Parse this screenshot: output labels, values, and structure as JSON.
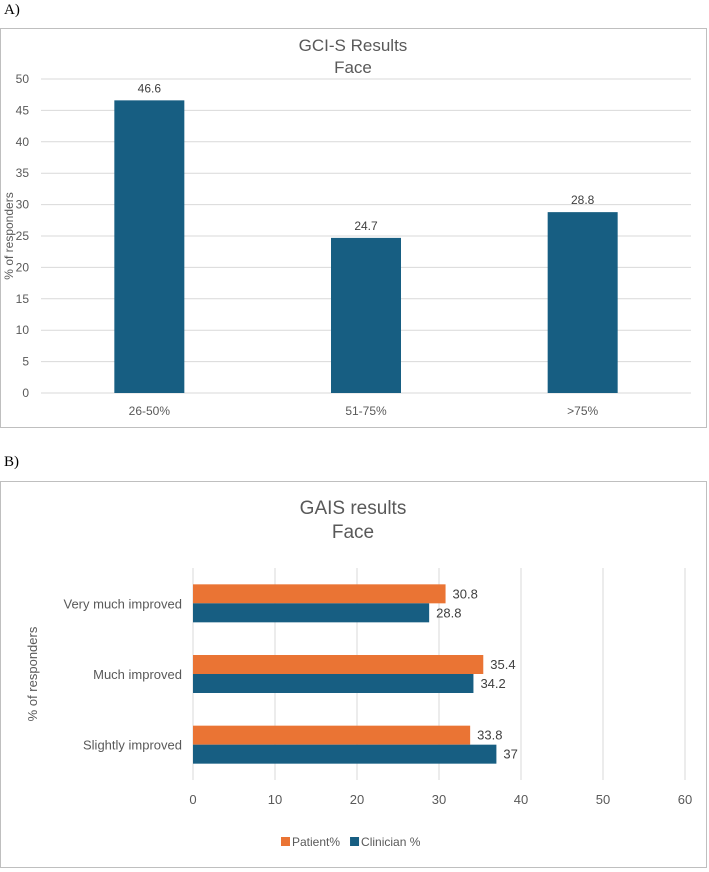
{
  "panels": [
    {
      "label": "A)"
    },
    {
      "label": "B)"
    }
  ],
  "colors": {
    "clinician": "#175e82",
    "patient": "#ea7434",
    "grid": "#d9d9d9",
    "axis_text": "#595959",
    "title_text": "#595959"
  },
  "chart_data": [
    {
      "type": "bar",
      "title": "GCI-S  Results",
      "subtitle": "Face",
      "xlabel": "",
      "ylabel": "% of responders",
      "categories": [
        "26-50%",
        "51-75%",
        ">75%"
      ],
      "values": [
        46.6,
        24.7,
        28.8
      ],
      "value_labels": [
        "46.6",
        "24.7",
        "28.8"
      ],
      "ylim": [
        0,
        50
      ],
      "yticks": [
        0,
        5,
        10,
        15,
        20,
        25,
        30,
        35,
        40,
        45,
        50
      ],
      "grid": true,
      "legend": "none"
    },
    {
      "type": "bar",
      "orientation": "horizontal",
      "title": "GAIS results",
      "subtitle": "Face",
      "xlabel": "",
      "ylabel": "% of responders",
      "categories": [
        "Very much improved",
        "Much improved",
        "Slightly improved"
      ],
      "series": [
        {
          "name": "Patient%",
          "values": [
            30.8,
            35.4,
            33.8
          ],
          "value_labels": [
            "30.8",
            "35.4",
            "33.8"
          ]
        },
        {
          "name": "Clinician %",
          "values": [
            28.8,
            34.2,
            37
          ],
          "value_labels": [
            "28.8",
            "34.2",
            "37"
          ]
        }
      ],
      "xlim": [
        0,
        60
      ],
      "xticks": [
        0,
        10,
        20,
        30,
        40,
        50,
        60
      ],
      "grid": true,
      "legend": "bottom"
    }
  ]
}
